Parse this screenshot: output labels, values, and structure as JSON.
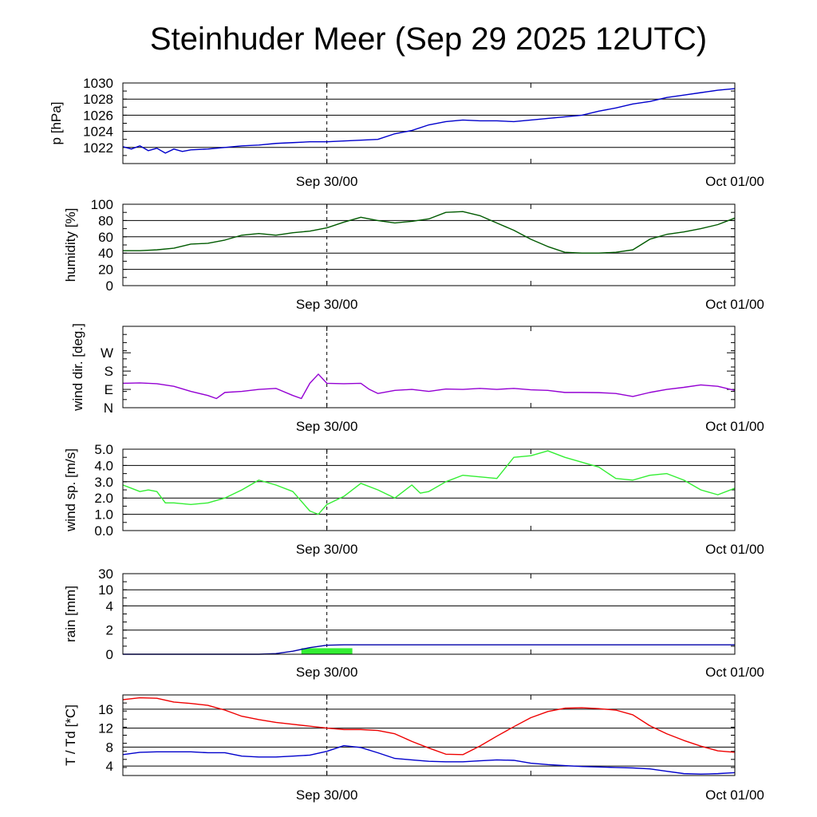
{
  "title": "Steinhuder Meer (Sep 29 2025 12UTC)",
  "time_labels": [
    "Sep 30/00",
    "Oct 01/00"
  ],
  "colors": {
    "pressure": "#0000cc",
    "humidity": "#005a00",
    "wind_dir": "#9400d3",
    "wind_speed": "#33ee33",
    "rain_bar": "#33ee33",
    "rain_line": "#0000aa",
    "temperature": "#ee0000",
    "dewpoint": "#0000cc"
  },
  "chart_data": [
    {
      "type": "line",
      "name": "pressure",
      "ylabel": "p [hPa]",
      "ylim": [
        1020,
        1030
      ],
      "yticks": [
        1022,
        1024,
        1026,
        1028,
        1030
      ],
      "ytick_labels": [
        "1022",
        "1024",
        "1026",
        "1028",
        "1030"
      ],
      "xlim": [
        0,
        36
      ],
      "x_hours_since_start": [
        0,
        0.5,
        1,
        1.5,
        2,
        2.5,
        3,
        3.5,
        4,
        5,
        6,
        7,
        8,
        9,
        10,
        11,
        12,
        13,
        14,
        15,
        16,
        17,
        18,
        19,
        20,
        21,
        22,
        23,
        24,
        25,
        26,
        27,
        28,
        29,
        30,
        31,
        32,
        33,
        34,
        35,
        36
      ],
      "values": [
        1022.1,
        1021.8,
        1022.2,
        1021.6,
        1021.9,
        1021.3,
        1021.8,
        1021.5,
        1021.7,
        1021.8,
        1022.0,
        1022.2,
        1022.3,
        1022.5,
        1022.6,
        1022.7,
        1022.7,
        1022.8,
        1022.9,
        1023.0,
        1023.7,
        1024.1,
        1024.8,
        1025.2,
        1025.4,
        1025.3,
        1025.3,
        1025.2,
        1025.4,
        1025.6,
        1025.8,
        1026.0,
        1026.5,
        1026.9,
        1027.4,
        1027.7,
        1028.2,
        1028.5,
        1028.8,
        1029.1,
        1029.3
      ]
    },
    {
      "type": "line",
      "name": "humidity",
      "ylabel": "humidity [%]",
      "ylim": [
        0,
        100
      ],
      "yticks": [
        0,
        20,
        40,
        60,
        80,
        100
      ],
      "ytick_labels": [
        "0",
        "20",
        "40",
        "60",
        "80",
        "100"
      ],
      "xlim": [
        0,
        36
      ],
      "x_hours_since_start": [
        0,
        1,
        2,
        3,
        4,
        5,
        6,
        7,
        8,
        9,
        10,
        11,
        12,
        13,
        14,
        15,
        16,
        17,
        18,
        19,
        20,
        21,
        22,
        23,
        24,
        25,
        26,
        27,
        28,
        29,
        30,
        31,
        32,
        33,
        34,
        35,
        36
      ],
      "values": [
        43,
        43,
        44,
        46,
        51,
        52,
        56,
        62,
        64,
        62,
        65,
        67,
        71,
        78,
        84,
        80,
        77,
        79,
        82,
        90,
        91,
        86,
        77,
        68,
        57,
        48,
        41,
        40,
        40,
        41,
        44,
        57,
        63,
        66,
        70,
        75,
        83
      ]
    },
    {
      "type": "line",
      "name": "wind direction",
      "ylabel": "wind dir. [deg.]",
      "ylim": [
        0,
        400
      ],
      "yticks": [
        0,
        90,
        180,
        270
      ],
      "ytick_labels": [
        "N",
        "E",
        "S",
        "W"
      ],
      "xlim": [
        0,
        36
      ],
      "x_hours_since_start": [
        0,
        1,
        2,
        3,
        4,
        5,
        5.5,
        6,
        7,
        8,
        9,
        10,
        10.5,
        11,
        11.5,
        12,
        13,
        14,
        14.5,
        15,
        16,
        17,
        18,
        19,
        20,
        21,
        22,
        23,
        24,
        25,
        26,
        27,
        28,
        29,
        30,
        31,
        32,
        33,
        34,
        35,
        36
      ],
      "values": [
        120,
        122,
        118,
        105,
        80,
        60,
        45,
        75,
        80,
        90,
        95,
        60,
        45,
        120,
        165,
        120,
        118,
        120,
        90,
        70,
        85,
        90,
        80,
        92,
        90,
        95,
        90,
        95,
        88,
        85,
        75,
        75,
        74,
        70,
        55,
        75,
        90,
        100,
        112,
        105,
        85
      ]
    },
    {
      "type": "line",
      "name": "wind speed",
      "ylabel": "wind sp. [m/s]",
      "ylim": [
        0,
        5
      ],
      "yticks": [
        0,
        1,
        2,
        3,
        4,
        5
      ],
      "ytick_labels": [
        "0.0",
        "1.0",
        "2.0",
        "3.0",
        "4.0",
        "5.0"
      ],
      "xlim": [
        0,
        36
      ],
      "x_hours_since_start": [
        0,
        0.5,
        1,
        1.5,
        2,
        2.5,
        3,
        4,
        5,
        6,
        7,
        8,
        9,
        10,
        11,
        11.5,
        12,
        13,
        14,
        15,
        16,
        17,
        17.5,
        18,
        19,
        20,
        21,
        22,
        23,
        24,
        25,
        26,
        27,
        28,
        29,
        30,
        31,
        32,
        33,
        34,
        35,
        36
      ],
      "values": [
        2.8,
        2.6,
        2.4,
        2.5,
        2.4,
        1.7,
        1.7,
        1.6,
        1.7,
        2.0,
        2.5,
        3.1,
        2.8,
        2.4,
        1.2,
        1.0,
        1.6,
        2.1,
        2.9,
        2.5,
        2.0,
        2.8,
        2.3,
        2.4,
        3.0,
        3.4,
        3.3,
        3.2,
        4.5,
        4.6,
        4.9,
        4.5,
        4.2,
        3.9,
        3.2,
        3.1,
        3.4,
        3.5,
        3.1,
        2.5,
        2.2,
        2.6
      ]
    },
    {
      "type": "bar",
      "name": "rain",
      "ylabel": "rain [mm]",
      "ylim": [
        0,
        30
      ],
      "yticks": [
        0,
        2,
        4,
        10,
        30
      ],
      "ytick_labels": [
        "0",
        "2",
        "4",
        "10",
        "30"
      ],
      "xlim": [
        0,
        36
      ],
      "bars": [
        {
          "x_start": 10.5,
          "x_end": 13.5,
          "value": 0.5
        }
      ],
      "accumulated_x": [
        0,
        8,
        9,
        10,
        11,
        12,
        13,
        14,
        36
      ],
      "accumulated_values": [
        0.0,
        0.0,
        0.05,
        0.25,
        0.55,
        0.75,
        0.78,
        0.78,
        0.78
      ]
    },
    {
      "type": "line",
      "name": "temperature and dewpoint",
      "ylabel": "T / Td [*C]",
      "ylim": [
        2,
        19
      ],
      "yticks": [
        4,
        8,
        12,
        16
      ],
      "ytick_labels": [
        "4",
        "8",
        "12",
        "16"
      ],
      "xlim": [
        0,
        36
      ],
      "series": [
        {
          "name": "T",
          "x_hours_since_start": [
            0,
            1,
            2,
            3,
            4,
            5,
            6,
            7,
            8,
            9,
            10,
            11,
            12,
            13,
            14,
            15,
            16,
            17,
            18,
            19,
            20,
            21,
            22,
            23,
            24,
            25,
            26,
            27,
            28,
            29,
            30,
            31,
            32,
            33,
            34,
            35,
            36
          ],
          "values": [
            18.0,
            18.4,
            18.3,
            17.5,
            17.2,
            16.8,
            15.8,
            14.5,
            13.8,
            13.2,
            12.8,
            12.4,
            12.0,
            11.7,
            11.7,
            11.5,
            10.8,
            9.2,
            7.8,
            6.5,
            6.4,
            8.2,
            10.3,
            12.3,
            14.2,
            15.5,
            16.2,
            16.3,
            16.1,
            15.8,
            14.8,
            12.5,
            10.8,
            9.4,
            8.2,
            7.2,
            6.9
          ]
        },
        {
          "name": "Td",
          "x_hours_since_start": [
            0,
            1,
            2,
            3,
            4,
            5,
            6,
            7,
            8,
            9,
            10,
            11,
            12,
            13,
            14,
            15,
            16,
            17,
            18,
            19,
            20,
            21,
            22,
            23,
            24,
            25,
            26,
            27,
            28,
            29,
            30,
            31,
            32,
            33,
            34,
            35,
            36
          ],
          "values": [
            6.4,
            6.9,
            7.0,
            7.0,
            7.0,
            6.8,
            6.8,
            6.1,
            5.9,
            5.9,
            6.1,
            6.3,
            7.1,
            8.3,
            7.9,
            6.8,
            5.6,
            5.3,
            5.0,
            4.9,
            4.9,
            5.1,
            5.3,
            5.2,
            4.6,
            4.3,
            4.1,
            3.9,
            3.8,
            3.7,
            3.6,
            3.4,
            2.9,
            2.4,
            2.3,
            2.4,
            2.6
          ]
        }
      ]
    }
  ]
}
